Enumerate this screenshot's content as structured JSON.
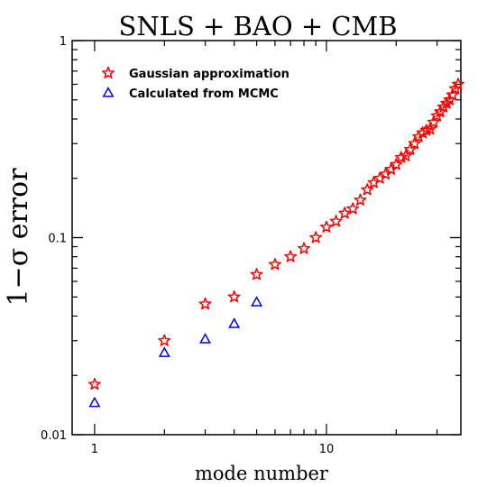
{
  "chart_data": {
    "type": "scatter",
    "title": "SNLS + BAO + CMB",
    "xlabel": "mode number",
    "ylabel": "1−σ  error",
    "xscale": "log",
    "yscale": "log",
    "xlim": [
      0.8,
      38
    ],
    "ylim": [
      0.01,
      1
    ],
    "xticks": [
      {
        "value": 1,
        "label": "1"
      },
      {
        "value": 10,
        "label": "10"
      }
    ],
    "yticks": [
      {
        "value": 0.01,
        "label": "0.01"
      },
      {
        "value": 0.1,
        "label": "0.1"
      },
      {
        "value": 1,
        "label": "1"
      }
    ],
    "legend_position": "top-left",
    "series": [
      {
        "name": "Gaussian approximation",
        "marker": "star",
        "color": "#ff0000",
        "x": [
          1,
          2,
          3,
          4,
          5,
          6,
          7,
          8,
          9,
          10,
          11,
          12,
          13,
          14,
          15,
          16,
          17,
          18,
          19,
          20,
          21,
          22,
          23,
          24,
          25,
          26,
          27,
          28,
          29,
          30,
          31,
          32,
          33,
          34,
          35,
          36,
          37
        ],
        "y": [
          0.018,
          0.03,
          0.046,
          0.05,
          0.065,
          0.073,
          0.08,
          0.088,
          0.1,
          0.113,
          0.121,
          0.133,
          0.14,
          0.155,
          0.175,
          0.19,
          0.2,
          0.21,
          0.222,
          0.235,
          0.255,
          0.26,
          0.28,
          0.3,
          0.325,
          0.34,
          0.35,
          0.355,
          0.385,
          0.415,
          0.435,
          0.46,
          0.48,
          0.5,
          0.53,
          0.57,
          0.6
        ]
      },
      {
        "name": "Calculated from MCMC",
        "marker": "triangle",
        "color": "#0000ff",
        "x": [
          1,
          2,
          3,
          4,
          5
        ],
        "y": [
          0.0145,
          0.026,
          0.0305,
          0.0365,
          0.047
        ]
      }
    ]
  }
}
